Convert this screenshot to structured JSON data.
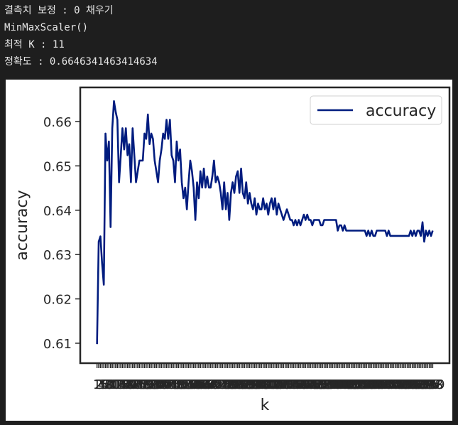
{
  "console": [
    "결측치 보정 : 0 채우기",
    "MinMaxScaler()",
    "최적 K : 11",
    "정확도 : 0.6646341463414634"
  ],
  "chart_data": {
    "type": "line",
    "xlabel": "k",
    "ylabel": "accuracy",
    "x": [
      1,
      2,
      3,
      4,
      5,
      6,
      7,
      8,
      9,
      10,
      11,
      12,
      13,
      14,
      15,
      16,
      17,
      18,
      19,
      20,
      21,
      22,
      23,
      24,
      25,
      26,
      27,
      28,
      29,
      30,
      31,
      32,
      33,
      34,
      35,
      36,
      37,
      38,
      39,
      40,
      41,
      42,
      43,
      44,
      45,
      46,
      47,
      48,
      49,
      50,
      51,
      52,
      53,
      54,
      55,
      56,
      57,
      58,
      59,
      60,
      61,
      62,
      63,
      64,
      65,
      66,
      67,
      68,
      69,
      70,
      71,
      72,
      73,
      74,
      75,
      76,
      77,
      78,
      79,
      80,
      81,
      82,
      83,
      84,
      85,
      86,
      87,
      88,
      89,
      90,
      91,
      92,
      93,
      94,
      95,
      96,
      97,
      98,
      99,
      100,
      101,
      102,
      103,
      104,
      105,
      106,
      107,
      108,
      109,
      110,
      111,
      112,
      113,
      114,
      115,
      116,
      117,
      118,
      119,
      120,
      121,
      122,
      123,
      124,
      125,
      126,
      127,
      128,
      129,
      130,
      131,
      132,
      133,
      134,
      135,
      136,
      137,
      138,
      139,
      140,
      141,
      142,
      143,
      144,
      145,
      146,
      147,
      148,
      149,
      150,
      151,
      152,
      153,
      154,
      155,
      156,
      157,
      158,
      159,
      160,
      161,
      162,
      163,
      164,
      165,
      166,
      167,
      168,
      169,
      170,
      171,
      172,
      173,
      174,
      175,
      176,
      177,
      178,
      179,
      180,
      181,
      182,
      183,
      184,
      185,
      186,
      187,
      188,
      189,
      190,
      191,
      192,
      193,
      194,
      195,
      196,
      197,
      198,
      199
    ],
    "series": [
      {
        "name": "accuracy",
        "color": "#001c7f",
        "values": [
          0.6098,
          0.6329,
          0.6341,
          0.628,
          0.6232,
          0.6573,
          0.6512,
          0.6555,
          0.6362,
          0.6585,
          0.6646,
          0.6622,
          0.6604,
          0.6463,
          0.6524,
          0.6585,
          0.6537,
          0.6585,
          0.6524,
          0.6549,
          0.6463,
          0.6585,
          0.6524,
          0.6463,
          0.6488,
          0.6512,
          0.6512,
          0.6512,
          0.6573,
          0.6561,
          0.6616,
          0.6549,
          0.6573,
          0.6561,
          0.6512,
          0.6488,
          0.6463,
          0.6512,
          0.6537,
          0.6573,
          0.6561,
          0.6604,
          0.6561,
          0.6604,
          0.6524,
          0.6512,
          0.6463,
          0.6555,
          0.6512,
          0.6537,
          0.6463,
          0.6427,
          0.6451,
          0.6402,
          0.6463,
          0.6512,
          0.6488,
          0.6451,
          0.6378,
          0.6463,
          0.6427,
          0.6488,
          0.6451,
          0.6494,
          0.6451,
          0.6476,
          0.6451,
          0.6451,
          0.6476,
          0.6512,
          0.6463,
          0.6476,
          0.6463,
          0.6439,
          0.6402,
          0.6463,
          0.6402,
          0.6439,
          0.6378,
          0.6439,
          0.6463,
          0.6439,
          0.6476,
          0.6488,
          0.6439,
          0.6494,
          0.6439,
          0.6427,
          0.6463,
          0.6415,
          0.6439,
          0.6415,
          0.6402,
          0.6427,
          0.639,
          0.6415,
          0.6402,
          0.6402,
          0.6427,
          0.6402,
          0.6415,
          0.639,
          0.6415,
          0.6427,
          0.6402,
          0.6427,
          0.639,
          0.6415,
          0.6402,
          0.639,
          0.6378,
          0.639,
          0.6402,
          0.639,
          0.6378,
          0.6378,
          0.6366,
          0.6378,
          0.6366,
          0.6378,
          0.6366,
          0.6378,
          0.639,
          0.6378,
          0.639,
          0.6378,
          0.6378,
          0.6366,
          0.6378,
          0.6378,
          0.6378,
          0.6378,
          0.6366,
          0.6366,
          0.6378,
          0.6378,
          0.6378,
          0.6378,
          0.6378,
          0.6378,
          0.6378,
          0.6378,
          0.6354,
          0.6366,
          0.6366,
          0.6354,
          0.6366,
          0.6354,
          0.6354,
          0.6354,
          0.6354,
          0.6354,
          0.6354,
          0.6354,
          0.6354,
          0.6354,
          0.6354,
          0.6354,
          0.6354,
          0.6342,
          0.6354,
          0.6342,
          0.6354,
          0.6342,
          0.6342,
          0.6354,
          0.6354,
          0.6354,
          0.6354,
          0.6354,
          0.6354,
          0.6342,
          0.6354,
          0.6342,
          0.6342,
          0.6342,
          0.6342,
          0.6342,
          0.6342,
          0.6342,
          0.6342,
          0.6342,
          0.6342,
          0.6342,
          0.6342,
          0.6354,
          0.6342,
          0.6354,
          0.6342,
          0.6354,
          0.6354,
          0.6342,
          0.6373,
          0.6329,
          0.6354,
          0.6342,
          0.6354,
          0.6342,
          0.6354
        ]
      }
    ],
    "xlim": [
      -8.9,
      208.9
    ],
    "xticks": [
      1,
      2,
      3,
      4,
      5,
      6,
      7,
      8,
      9,
      10,
      11,
      12,
      13,
      14,
      15,
      16,
      17,
      18,
      19,
      20,
      21,
      22,
      23,
      24,
      25,
      26,
      27,
      28,
      29,
      30,
      31,
      32,
      33,
      34,
      35,
      36,
      37,
      38,
      39,
      40,
      41,
      42,
      43,
      44,
      45,
      46,
      47,
      48,
      49,
      50,
      51,
      52,
      53,
      54,
      55,
      56,
      57,
      58,
      59,
      60,
      61,
      62,
      63,
      64,
      65,
      66,
      67,
      68,
      69,
      70,
      71,
      72,
      73,
      74,
      75,
      76,
      77,
      78,
      79,
      80,
      81,
      82,
      83,
      84,
      85,
      86,
      87,
      88,
      89,
      90,
      91,
      92,
      93,
      94,
      95,
      96,
      97,
      98,
      99,
      100,
      101,
      102,
      103,
      104,
      105,
      106,
      107,
      108,
      109,
      110,
      111,
      112,
      113,
      114,
      115,
      116,
      117,
      118,
      119,
      120,
      121,
      122,
      123,
      124,
      125,
      126,
      127,
      128,
      129,
      130,
      131,
      132,
      133,
      134,
      135,
      136,
      137,
      138,
      139,
      140,
      141,
      142,
      143,
      144,
      145,
      146,
      147,
      148,
      149,
      150,
      151,
      152,
      153,
      154,
      155,
      156,
      157,
      158,
      159,
      160,
      161,
      162,
      163,
      164,
      165,
      166,
      167,
      168,
      169,
      170,
      171,
      172,
      173,
      174,
      175,
      176,
      177,
      178,
      179,
      180,
      181,
      182,
      183,
      184,
      185,
      186,
      187,
      188,
      189,
      190,
      191,
      192,
      193,
      194,
      195,
      196,
      197,
      198,
      199
    ],
    "ylim": [
      0.6055,
      0.6677
    ],
    "yticks": [
      0.61,
      0.62,
      0.63,
      0.64,
      0.65,
      0.66
    ],
    "legend": "upper right",
    "grid": false
  }
}
